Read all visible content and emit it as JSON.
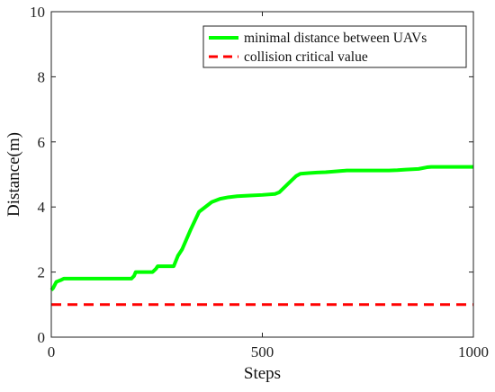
{
  "chart_data": {
    "type": "line",
    "title": "",
    "xlabel": "Steps",
    "ylabel": "Distance(m)",
    "xlim": [
      0,
      1000
    ],
    "ylim": [
      0,
      10
    ],
    "xticks": [
      0,
      500,
      1000
    ],
    "yticks": [
      0,
      2,
      4,
      6,
      8,
      10
    ],
    "grid": false,
    "legend_position": "top-right",
    "series": [
      {
        "name": "minimal distance between UAVs",
        "color": "#00ff00",
        "style": "solid",
        "x": [
          0,
          4,
          8,
          12,
          16,
          22,
          30,
          40,
          60,
          100,
          150,
          190,
          196,
          200,
          210,
          240,
          248,
          252,
          260,
          290,
          300,
          310,
          330,
          350,
          370,
          380,
          400,
          420,
          440,
          470,
          500,
          530,
          540,
          560,
          580,
          590,
          610,
          630,
          650,
          680,
          700,
          750,
          800,
          820,
          840,
          870,
          890,
          900,
          1000
        ],
        "y": [
          1.45,
          1.5,
          1.6,
          1.7,
          1.72,
          1.75,
          1.8,
          1.8,
          1.8,
          1.8,
          1.8,
          1.8,
          1.88,
          2.0,
          2.0,
          2.0,
          2.1,
          2.18,
          2.18,
          2.18,
          2.5,
          2.7,
          3.3,
          3.85,
          4.05,
          4.15,
          4.25,
          4.3,
          4.33,
          4.35,
          4.37,
          4.4,
          4.45,
          4.7,
          4.95,
          5.02,
          5.04,
          5.06,
          5.07,
          5.1,
          5.12,
          5.12,
          5.12,
          5.13,
          5.15,
          5.17,
          5.22,
          5.23,
          5.23
        ]
      },
      {
        "name": "collision critical value",
        "color": "#ff0000",
        "style": "dashed",
        "x": [
          0,
          1000
        ],
        "y": [
          1,
          1
        ]
      }
    ]
  }
}
